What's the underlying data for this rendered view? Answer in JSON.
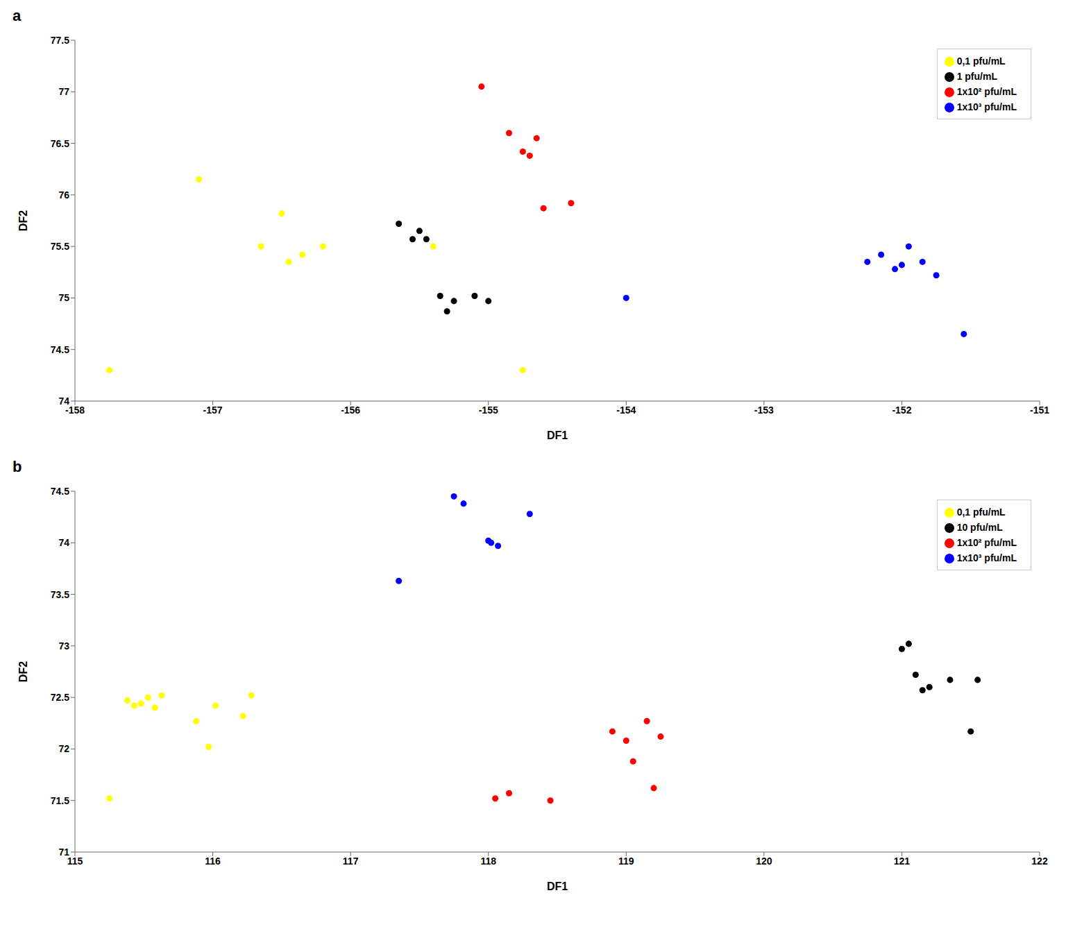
{
  "chart_data": [
    {
      "type": "scatter",
      "title": "a",
      "xlabel": "DF1",
      "ylabel": "DF2",
      "xlim": [
        -158,
        -151
      ],
      "ylim": [
        74,
        77.5
      ],
      "xticks": [
        -158,
        -157,
        -156,
        -155,
        -154,
        -153,
        -152,
        -151
      ],
      "yticks": [
        74,
        74.5,
        75,
        75.5,
        76,
        76.5,
        77,
        77.5
      ],
      "grid": false,
      "legend": "upper right",
      "series": [
        {
          "name": "1x10³ pfu/mL",
          "color": "#0000FF",
          "x": [
            -154.0,
            -152.25,
            -152.15,
            -152.05,
            -152.0,
            -151.95,
            -151.85,
            -151.75,
            -151.55
          ],
          "values": [
            75.0,
            75.35,
            75.42,
            75.28,
            75.32,
            75.5,
            75.35,
            75.22,
            74.65
          ]
        },
        {
          "name": "1x10² pfu/mL",
          "color": "#FF0000",
          "x": [
            -155.05,
            -154.85,
            -154.75,
            -154.7,
            -154.65,
            -154.6,
            -154.4
          ],
          "values": [
            77.05,
            76.6,
            76.42,
            76.38,
            76.55,
            75.87,
            75.92
          ]
        },
        {
          "name": "1 pfu/mL",
          "color": "#000000",
          "x": [
            -155.65,
            -155.55,
            -155.5,
            -155.45,
            -155.35,
            -155.3,
            -155.25,
            -155.1,
            -155.0
          ],
          "values": [
            75.72,
            75.57,
            75.65,
            75.57,
            75.02,
            74.87,
            74.97,
            75.02,
            74.97
          ]
        },
        {
          "name": "0,1 pfu/mL",
          "color": "#FFFF00",
          "x": [
            -157.75,
            -157.1,
            -156.65,
            -156.5,
            -156.45,
            -156.35,
            -156.2,
            -155.4,
            -154.75
          ],
          "values": [
            74.3,
            76.15,
            75.5,
            75.82,
            75.35,
            75.42,
            75.5,
            75.5,
            74.3
          ]
        }
      ]
    },
    {
      "type": "scatter",
      "title": "b",
      "xlabel": "DF1",
      "ylabel": "DF2",
      "xlim": [
        115,
        122
      ],
      "ylim": [
        71,
        74.5
      ],
      "xticks": [
        115,
        116,
        117,
        118,
        119,
        120,
        121,
        122
      ],
      "yticks": [
        71,
        71.5,
        72,
        72.5,
        73,
        73.5,
        74,
        74.5
      ],
      "grid": false,
      "legend": "upper right",
      "series": [
        {
          "name": "1x10³ pfu/mL",
          "color": "#0000FF",
          "x": [
            117.35,
            117.75,
            117.82,
            118.0,
            118.02,
            118.07,
            118.3
          ],
          "values": [
            73.63,
            74.45,
            74.38,
            74.02,
            74.0,
            73.97,
            74.28
          ]
        },
        {
          "name": "1x10² pfu/mL",
          "color": "#FF0000",
          "x": [
            118.05,
            118.15,
            118.45,
            118.9,
            119.0,
            119.05,
            119.15,
            119.2,
            119.25
          ],
          "values": [
            71.52,
            71.57,
            71.5,
            72.17,
            72.08,
            71.88,
            72.27,
            71.62,
            72.12
          ]
        },
        {
          "name": "10 pfu/mL",
          "color": "#000000",
          "x": [
            121.0,
            121.05,
            121.1,
            121.15,
            121.2,
            121.35,
            121.5,
            121.55
          ],
          "values": [
            72.97,
            73.02,
            72.72,
            72.57,
            72.6,
            72.67,
            72.17,
            72.67
          ]
        },
        {
          "name": "0,1 pfu/mL",
          "color": "#FFFF00",
          "x": [
            115.25,
            115.38,
            115.43,
            115.48,
            115.53,
            115.58,
            115.63,
            115.88,
            115.97,
            116.02,
            116.22,
            116.28
          ],
          "values": [
            71.52,
            72.47,
            72.42,
            72.44,
            72.5,
            72.4,
            72.52,
            72.27,
            72.02,
            72.42,
            72.32,
            72.52
          ]
        }
      ]
    }
  ]
}
